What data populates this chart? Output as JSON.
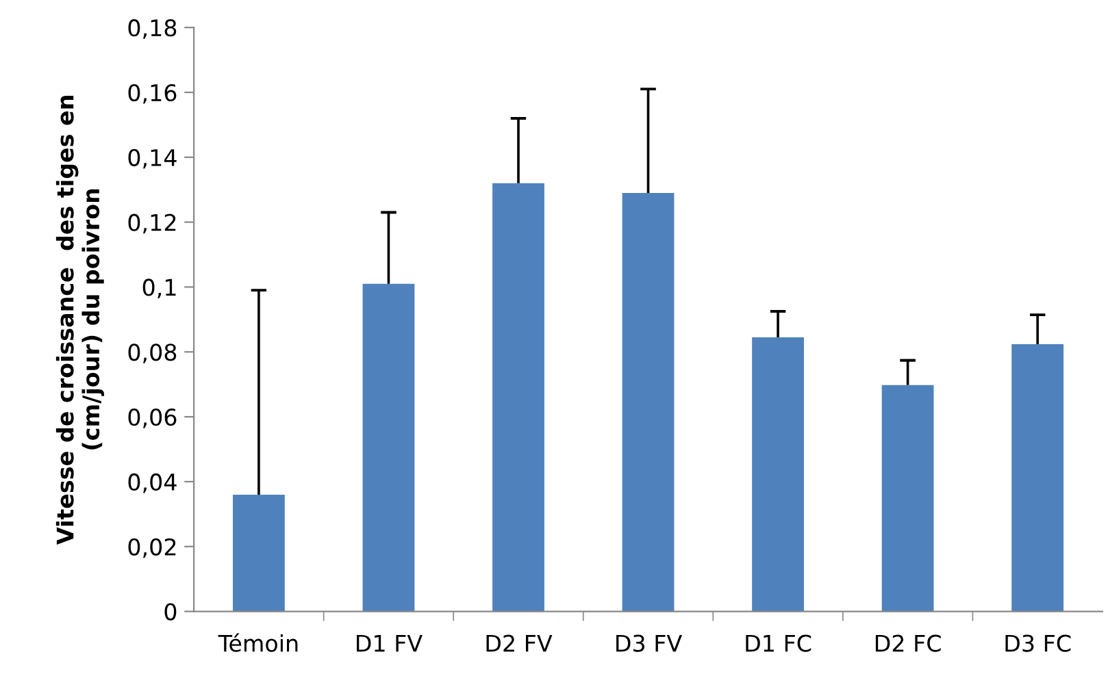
{
  "chart_data": {
    "type": "bar",
    "ylabel": "Vitesse de croissance  des tiges en\n(cm/jour) du poivron",
    "categories": [
      "Témoin",
      "D1 FV",
      "D2 FV",
      "D3 FV",
      "D1 FC",
      "D2 FC",
      "D3 FC"
    ],
    "values": [
      0.036,
      0.101,
      0.132,
      0.129,
      0.0845,
      0.0698,
      0.0824
    ],
    "errors": [
      [
        0.036,
        0.099
      ],
      [
        0.101,
        0.123
      ],
      [
        0.132,
        0.152
      ],
      [
        0.129,
        0.161
      ],
      [
        0.0845,
        0.0925
      ],
      [
        0.0698,
        0.0774
      ],
      [
        0.0824,
        0.0914
      ]
    ],
    "color": "#4f81bd",
    "ylim": [
      0,
      0.18
    ],
    "yticks": [
      {
        "value": 0,
        "label": "0"
      },
      {
        "value": 0.02,
        "label": "0,02"
      },
      {
        "value": 0.04,
        "label": "0,04"
      },
      {
        "value": 0.06,
        "label": "0,06"
      },
      {
        "value": 0.08,
        "label": "0,08"
      },
      {
        "value": 0.1,
        "label": "0,1"
      },
      {
        "value": 0.12,
        "label": "0,12"
      },
      {
        "value": 0.14,
        "label": "0,14"
      },
      {
        "value": 0.16,
        "label": "0,16"
      },
      {
        "value": 0.18,
        "label": "0,18"
      }
    ],
    "grid": false,
    "legend": false
  }
}
